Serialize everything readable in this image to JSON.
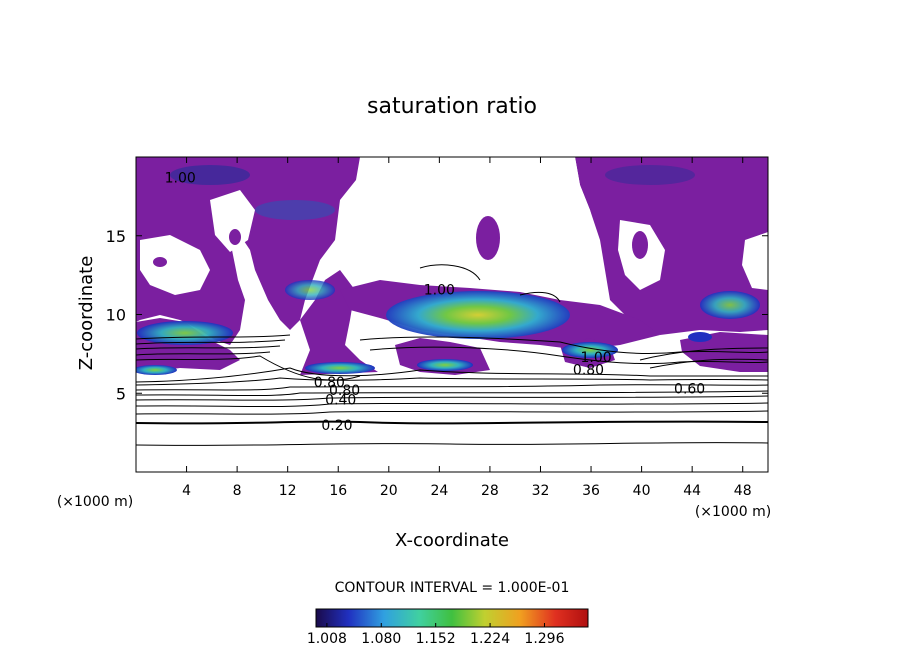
{
  "chart_data": {
    "type": "heatmap",
    "title": "saturation ratio",
    "xlabel": "X-coordinate",
    "ylabel": "Z-coordinate",
    "x_unit_left": "(×1000 m)",
    "x_unit_right": "(×1000 m)",
    "xlim": [
      0,
      50
    ],
    "ylim": [
      0,
      20
    ],
    "x_ticks": [
      4,
      8,
      12,
      16,
      20,
      24,
      28,
      32,
      36,
      40,
      44,
      48
    ],
    "y_ticks": [
      5,
      10,
      15
    ],
    "contour_interval_text": "CONTOUR INTERVAL = 1.000E-01",
    "colorbar": {
      "tick_labels": [
        "1.008",
        "1.080",
        "1.152",
        "1.224",
        "1.296"
      ],
      "colors": [
        "#1a0a4a",
        "#2030c0",
        "#30a0e0",
        "#40d0a0",
        "#40c040",
        "#c0d030",
        "#f0a020",
        "#e03020",
        "#b01010"
      ]
    },
    "contour_labels": [
      {
        "text": "0.20",
        "x": 15.9,
        "z": 3.0
      },
      {
        "text": "0.40",
        "x": 16.2,
        "z": 4.6
      },
      {
        "text": "0.60",
        "x": 43.8,
        "z": 5.3
      },
      {
        "text": "0.80",
        "x": 15.3,
        "z": 5.7
      },
      {
        "text": "0.80",
        "x": 35.8,
        "z": 6.5
      },
      {
        "text": "1.00",
        "x": 36.4,
        "z": 7.3
      },
      {
        "text": "1.00",
        "x": 3.5,
        "z": 18.7
      },
      {
        "text": "1.00",
        "x": 24.0,
        "z": 11.6
      },
      {
        "text": "0.80",
        "x": 16.5,
        "z": 5.2
      }
    ],
    "colors": {
      "supersaturated": "#7b1fa0",
      "undersaturated": "#ffffff",
      "contour": "#000000"
    }
  }
}
